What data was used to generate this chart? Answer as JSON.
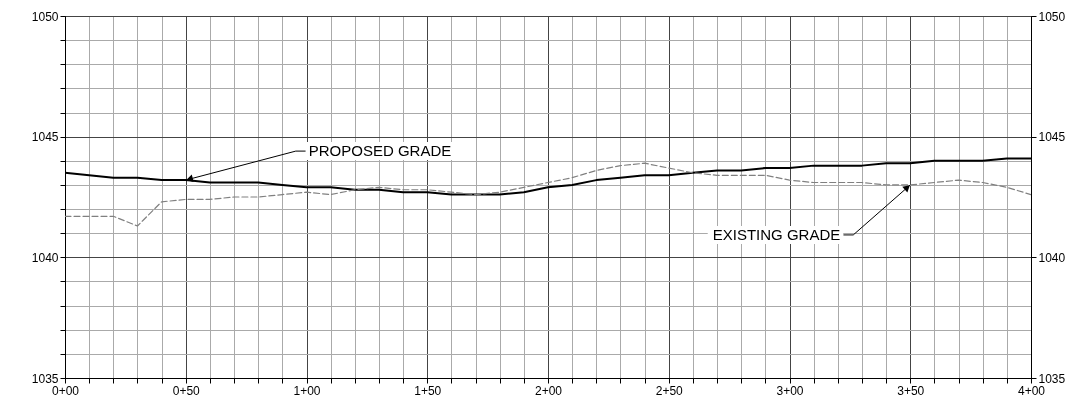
{
  "chart_data": {
    "type": "line",
    "categories": [
      "0+00",
      null,
      null,
      null,
      null,
      "0+50",
      null,
      null,
      null,
      null,
      "1+00",
      null,
      null,
      null,
      null,
      "1+50",
      null,
      null,
      null,
      null,
      "2+00",
      null,
      null,
      null,
      null,
      "2+50",
      null,
      null,
      null,
      null,
      "3+00",
      null,
      null,
      null,
      null,
      "3+50",
      null,
      null,
      null,
      null,
      "4+00"
    ],
    "ylim": [
      1035,
      1050
    ],
    "yticks": [
      1035,
      {
        "value": 1036,
        "label": null
      },
      {
        "value": 1037,
        "label": null
      },
      {
        "value": 1038,
        "label": null
      },
      {
        "value": 1039,
        "label": null
      },
      1040,
      {
        "value": 1041,
        "label": null
      },
      {
        "value": 1042,
        "label": null
      },
      {
        "value": 1043,
        "label": null
      },
      {
        "value": 1044,
        "label": null
      },
      1045,
      {
        "value": 1046,
        "label": null
      },
      {
        "value": 1047,
        "label": null
      },
      {
        "value": 1048,
        "label": null
      },
      {
        "value": 1049,
        "label": null
      },
      1050
    ],
    "y2lim": [
      1035,
      1050
    ],
    "y2ticks": [
      1035,
      1040,
      1045,
      1050
    ],
    "grid": true,
    "series": [
      {
        "color": "#000000",
        "line_style": "solid",
        "values": [
          1043.5,
          1043.4,
          1043.3,
          1043.3,
          1043.2,
          1043.2,
          1043.1,
          1043.1,
          1043.1,
          1043.0,
          1042.9,
          1042.9,
          1042.8,
          1042.8,
          1042.7,
          1042.7,
          1042.6,
          1042.6,
          1042.6,
          1042.7,
          1042.9,
          1043.0,
          1043.2,
          1043.3,
          1043.4,
          1043.4,
          1043.5,
          1043.6,
          1043.6,
          1043.7,
          1043.7,
          1043.8,
          1043.8,
          1043.8,
          1043.9,
          1043.9,
          1044.0,
          1044.0,
          1044.0,
          1044.1,
          1044.1
        ]
      },
      {
        "color": "#808080",
        "line_style": "dashed",
        "values": [
          1041.7,
          1041.7,
          1041.7,
          1041.3,
          1042.3,
          1042.4,
          1042.4,
          1042.5,
          1042.5,
          1042.6,
          1042.7,
          1042.6,
          1042.8,
          1042.9,
          1042.8,
          1042.8,
          1042.7,
          1042.6,
          1042.7,
          1042.9,
          1043.1,
          1043.3,
          1043.6,
          1043.8,
          1043.9,
          1043.7,
          1043.5,
          1043.4,
          1043.4,
          1043.4,
          1043.2,
          1043.1,
          1043.1,
          1043.1,
          1043.0,
          1043.0,
          1043.1,
          1043.2,
          1043.1,
          1042.9,
          1042.6
        ]
      }
    ],
    "annotations": [
      {
        "text": "PROPOSED GRADE",
        "x": "0+50",
        "y": 1043.2
      },
      {
        "text": "EXISTING GRADE",
        "x": "3+50",
        "y": 1043.0
      }
    ]
  }
}
